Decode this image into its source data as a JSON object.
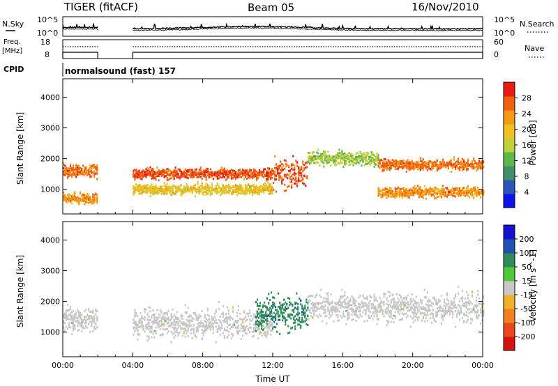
{
  "header": {
    "title": "TIGER (fitACF)",
    "beam": "Beam 05",
    "date": "16/Nov/2010"
  },
  "noise_panel": {
    "left_label": "N.Sky",
    "right_label": "N.Search",
    "left_ticks": [
      "10^5",
      "10^0"
    ],
    "right_ticks": [
      "10^5",
      "10^0"
    ],
    "data_gap": [
      "02:00",
      "04:00"
    ]
  },
  "freq_panel": {
    "left_label_line1": "Freq.",
    "left_label_line2": "[MHz]",
    "right_label": "Nave",
    "left_ticks": [
      "18",
      "8"
    ],
    "right_ticks": [
      "60",
      "0"
    ]
  },
  "cpid_panel": {
    "label": "CPID",
    "mode_text": "normalsound (fast) 157"
  },
  "colors": {
    "power_scale": [
      "#1010ee",
      "#2a55b8",
      "#3f8f6a",
      "#5cb84a",
      "#c2cf3a",
      "#f0c020",
      "#f59818",
      "#f06010",
      "#e81c14"
    ],
    "velocity_scale": [
      "#1810d0",
      "#2050b0",
      "#2e8c5a",
      "#50c838",
      "#c8c8c8",
      "#f0b028",
      "#f08020",
      "#e84818",
      "#d81010"
    ]
  },
  "chart_data": [
    {
      "type": "heatmap",
      "title": "",
      "xlabel": "",
      "ylabel": "Slant Range [km]",
      "xticks": [
        "00:00",
        "04:00",
        "08:00",
        "12:00",
        "16:00",
        "20:00",
        "00:00"
      ],
      "xlim": [
        "00:00",
        "24:00"
      ],
      "yticks": [
        "1000",
        "2000",
        "3000",
        "4000"
      ],
      "ylim": [
        200,
        4600
      ],
      "colorbar": {
        "label": "Power [dB]",
        "ticks": [
          "28",
          "24",
          "20",
          "16",
          "12",
          "8",
          "4"
        ],
        "range": [
          0,
          30
        ]
      },
      "echo_bands_km": [
        {
          "from": "00:00",
          "to": "02:00",
          "center": 1600,
          "width": 300,
          "value": 24
        },
        {
          "from": "00:00",
          "to": "02:00",
          "center": 700,
          "width": 250,
          "value": 22
        },
        {
          "from": "04:00",
          "to": "12:00",
          "center": 1500,
          "width": 250,
          "value": 26
        },
        {
          "from": "04:00",
          "to": "12:00",
          "center": 1000,
          "width": 250,
          "value": 18
        },
        {
          "from": "12:00",
          "to": "14:00",
          "center": 1500,
          "width": 700,
          "value": 26
        },
        {
          "from": "14:00",
          "to": "18:00",
          "center": 2000,
          "width": 350,
          "value": 14
        },
        {
          "from": "18:00",
          "to": "24:00",
          "center": 1800,
          "width": 250,
          "value": 24
        },
        {
          "from": "18:00",
          "to": "24:00",
          "center": 900,
          "width": 250,
          "value": 22
        }
      ]
    },
    {
      "type": "heatmap",
      "title": "",
      "xlabel": "Time UT",
      "ylabel": "Slant Range [km]",
      "xticks": [
        "00:00",
        "04:00",
        "08:00",
        "12:00",
        "16:00",
        "20:00",
        "00:00"
      ],
      "xlim": [
        "00:00",
        "24:00"
      ],
      "yticks": [
        "1000",
        "2000",
        "3000",
        "4000"
      ],
      "ylim": [
        200,
        4600
      ],
      "colorbar": {
        "label": "Velocity [m s^-1]",
        "ticks": [
          "200",
          "100",
          "50",
          "15",
          "-15",
          "-50",
          "-100",
          "-200"
        ],
        "range": [
          -250,
          250
        ]
      },
      "echo_bands_km": [
        {
          "from": "00:00",
          "to": "02:00",
          "center": 1400,
          "width": 600,
          "value": 0
        },
        {
          "from": "04:00",
          "to": "12:00",
          "center": 1300,
          "width": 700,
          "value": 0
        },
        {
          "from": "11:00",
          "to": "14:00",
          "center": 1600,
          "width": 800,
          "value": 120
        },
        {
          "from": "14:00",
          "to": "24:00",
          "center": 1800,
          "width": 700,
          "value": 0
        }
      ]
    }
  ]
}
